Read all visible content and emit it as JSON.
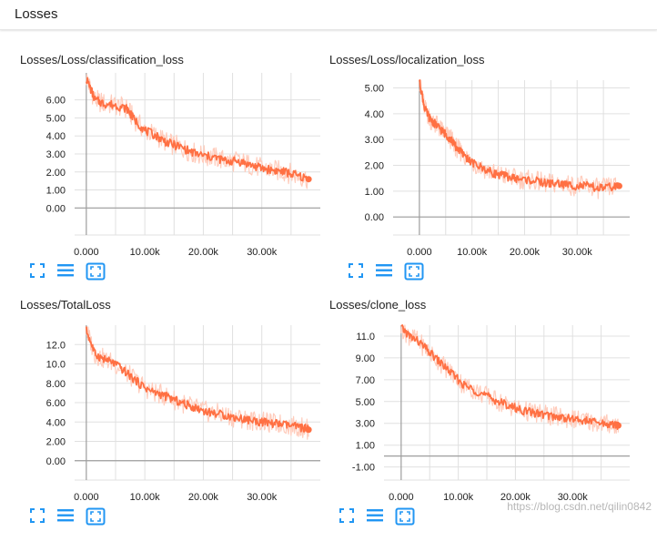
{
  "header": {
    "title": "Losses"
  },
  "colors": {
    "line": "#ff7043",
    "smoothed": "#ff7043",
    "raw": "#ffccbc",
    "axis": "#9e9e9e",
    "grid": "#e0e0e0",
    "icon": "#2196f3"
  },
  "toolbar_icons": [
    "fullscreen-icon",
    "lines-icon",
    "fit-domain-icon"
  ],
  "watermark": "https://blog.csdn.net/qilin0842",
  "charts": [
    {
      "title": "Losses/Loss/classification_loss",
      "chart_data": {
        "type": "line",
        "xlabel": "",
        "ylabel": "",
        "xlim": [
          -2000,
          40000
        ],
        "ylim": [
          -1.5,
          7.5
        ],
        "x_ticks": [
          "0.000",
          "10.00k",
          "20.00k",
          "30.00k"
        ],
        "y_ticks": [
          "6.00",
          "5.00",
          "4.00",
          "3.00",
          "2.00",
          "1.00",
          "0.00"
        ],
        "grid": true,
        "series": [
          {
            "x": [
              0,
              1500,
              3000,
              5000,
              7000,
              8000,
              10000,
              12000,
              14000,
              16000,
              18000,
              20000,
              22000,
              24000,
              26000,
              28000,
              30000,
              32000,
              34000,
              36000,
              38000
            ],
            "y": [
              7.2,
              6.0,
              5.8,
              5.7,
              5.5,
              5.0,
              4.3,
              4.0,
              3.6,
              3.4,
              3.1,
              2.9,
              2.8,
              2.6,
              2.6,
              2.4,
              2.2,
              2.1,
              2.0,
              1.8,
              1.6
            ]
          }
        ]
      }
    },
    {
      "title": "Losses/Loss/localization_loss",
      "chart_data": {
        "type": "line",
        "xlabel": "",
        "ylabel": "",
        "xlim": [
          -5000,
          40000
        ],
        "ylim": [
          -0.7,
          5.3
        ],
        "x_ticks": [
          "0.000",
          "10.00k",
          "20.00k",
          "30.00k"
        ],
        "y_ticks": [
          "5.00",
          "4.00",
          "3.00",
          "2.00",
          "1.00",
          "0.00"
        ],
        "grid": true,
        "series": [
          {
            "x": [
              0,
              1000,
              2000,
              3000,
              4000,
              5000,
              6000,
              7000,
              8000,
              10000,
              12000,
              14000,
              16000,
              18000,
              20000,
              22000,
              24000,
              26000,
              28000,
              30000,
              32000,
              34000,
              36000,
              38000
            ],
            "y": [
              5.3,
              4.2,
              3.8,
              3.6,
              3.4,
              3.2,
              3.0,
              2.7,
              2.5,
              2.1,
              1.9,
              1.7,
              1.6,
              1.5,
              1.45,
              1.4,
              1.3,
              1.3,
              1.25,
              1.2,
              1.2,
              1.1,
              1.15,
              1.2
            ]
          }
        ]
      }
    },
    {
      "title": "Losses/TotalLoss",
      "chart_data": {
        "type": "line",
        "xlabel": "",
        "ylabel": "",
        "xlim": [
          -2000,
          40000
        ],
        "ylim": [
          -2,
          14
        ],
        "x_ticks": [
          "0.000",
          "10.00k",
          "20.00k",
          "30.00k"
        ],
        "y_ticks": [
          "12.0",
          "10.0",
          "8.00",
          "6.00",
          "4.00",
          "2.00",
          "0.00"
        ],
        "grid": true,
        "series": [
          {
            "x": [
              0,
              1500,
              3000,
              5000,
              7000,
              9000,
              11000,
              13000,
              15000,
              17000,
              19000,
              21000,
              23000,
              25000,
              27000,
              29000,
              31000,
              33000,
              35000,
              37000,
              38000
            ],
            "y": [
              13.5,
              11.0,
              10.5,
              10.0,
              9.0,
              8.0,
              7.2,
              6.8,
              6.3,
              5.8,
              5.4,
              5.0,
              4.8,
              4.5,
              4.3,
              4.1,
              3.9,
              3.8,
              3.6,
              3.4,
              3.2
            ]
          }
        ]
      }
    },
    {
      "title": "Losses/clone_loss",
      "chart_data": {
        "type": "line",
        "xlabel": "",
        "ylabel": "",
        "xlim": [
          -3000,
          40000
        ],
        "ylim": [
          -2.2,
          12
        ],
        "x_ticks": [
          "0.000",
          "10.00k",
          "20.00k",
          "30.00k"
        ],
        "y_ticks": [
          "11.0",
          "9.00",
          "7.00",
          "5.00",
          "3.00",
          "1.00",
          "-1.00"
        ],
        "grid": true,
        "series": [
          {
            "x": [
              0,
              1500,
              3000,
              5000,
              7000,
              9000,
              11000,
              13000,
              15000,
              17000,
              19000,
              21000,
              23000,
              25000,
              27000,
              29000,
              31000,
              33000,
              35000,
              37000,
              38000
            ],
            "y": [
              11.8,
              11.0,
              10.5,
              9.5,
              8.5,
              7.5,
              6.5,
              6.0,
              5.5,
              5.0,
              4.6,
              4.2,
              4.0,
              3.8,
              3.6,
              3.5,
              3.3,
              3.2,
              3.0,
              2.9,
              2.8
            ]
          }
        ]
      }
    }
  ]
}
